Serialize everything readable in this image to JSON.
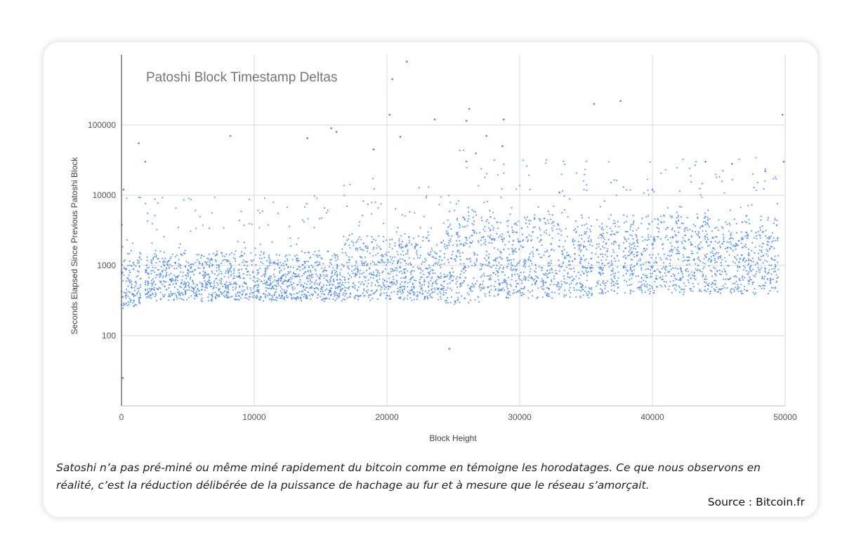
{
  "chart_data": {
    "type": "scatter",
    "title": "Patoshi Block Timestamp Deltas",
    "xlabel": "Block Height",
    "ylabel": "Seconds Elapsed Since Previous Patoshi Block",
    "xlim": [
      0,
      50000
    ],
    "ylim": [
      10,
      1000000
    ],
    "y_scale": "log",
    "grid": true,
    "legend": "none",
    "point_color": "#4a86e8",
    "x_ticks": [
      0,
      10000,
      20000,
      30000,
      40000,
      50000
    ],
    "y_ticks": [
      100,
      1000,
      10000,
      100000
    ],
    "clusters": [
      {
        "x": [
          0,
          1500
        ],
        "y": [
          250,
          1600
        ]
      },
      {
        "x": [
          1800,
          16600
        ],
        "y": [
          320,
          1600
        ]
      },
      {
        "x": [
          16600,
          24400
        ],
        "y": [
          320,
          2900
        ]
      },
      {
        "x": [
          24400,
          27000
        ],
        "y": [
          280,
          7500
        ]
      },
      {
        "x": [
          27000,
          35500
        ],
        "y": [
          350,
          5500
        ]
      },
      {
        "x": [
          35700,
          37500
        ],
        "y": [
          400,
          5000
        ]
      },
      {
        "x": [
          37800,
          49500
        ],
        "y": [
          400,
          5500
        ]
      }
    ],
    "outliers": [
      {
        "x": 150,
        "y": 12000
      },
      {
        "x": 100,
        "y": 25
      },
      {
        "x": 1300,
        "y": 55000
      },
      {
        "x": 1800,
        "y": 30000
      },
      {
        "x": 8200,
        "y": 70000
      },
      {
        "x": 14000,
        "y": 65000
      },
      {
        "x": 15800,
        "y": 90000
      },
      {
        "x": 16200,
        "y": 80000
      },
      {
        "x": 19000,
        "y": 45000
      },
      {
        "x": 20200,
        "y": 140000
      },
      {
        "x": 20400,
        "y": 450000
      },
      {
        "x": 21000,
        "y": 68000
      },
      {
        "x": 23600,
        "y": 120000
      },
      {
        "x": 21500,
        "y": 800000
      },
      {
        "x": 26000,
        "y": 115000
      },
      {
        "x": 26200,
        "y": 170000
      },
      {
        "x": 27500,
        "y": 70000
      },
      {
        "x": 28800,
        "y": 120000
      },
      {
        "x": 28700,
        "y": 50000
      },
      {
        "x": 35600,
        "y": 200000
      },
      {
        "x": 37600,
        "y": 220000
      },
      {
        "x": 49800,
        "y": 140000
      },
      {
        "x": 49900,
        "y": 30000
      },
      {
        "x": 24700,
        "y": 65
      },
      {
        "x": 29000,
        "y": 350
      },
      {
        "x": 33000,
        "y": 11000
      },
      {
        "x": 40000,
        "y": 12000
      },
      {
        "x": 44000,
        "y": 30000
      },
      {
        "x": 46000,
        "y": 28000
      },
      {
        "x": 48500,
        "y": 22000
      }
    ]
  },
  "caption": "Satoshi n’a pas pré-miné ou même miné rapidement du bitcoin comme en témoigne les horodatages. Ce que nous observons en réalité, c’est la réduction délibérée de la puissance de hachage au fur et à mesure que le réseau s’amorçait.",
  "source": "Source : Bitcoin.fr"
}
